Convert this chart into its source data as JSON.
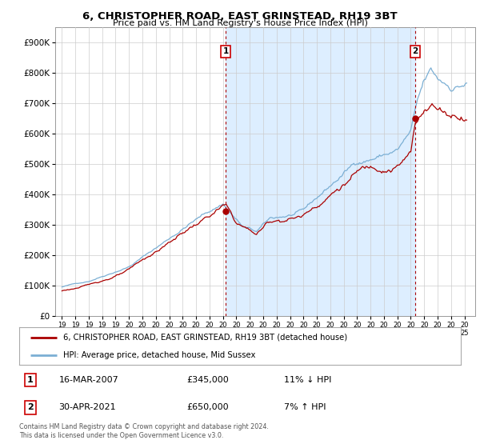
{
  "title_line1": "6, CHRISTOPHER ROAD, EAST GRINSTEAD, RH19 3BT",
  "title_line2": "Price paid vs. HM Land Registry's House Price Index (HPI)",
  "legend_label1": "6, CHRISTOPHER ROAD, EAST GRINSTEAD, RH19 3BT (detached house)",
  "legend_label2": "HPI: Average price, detached house, Mid Sussex",
  "annotation1_date": "16-MAR-2007",
  "annotation1_price": "£345,000",
  "annotation1_hpi": "11% ↓ HPI",
  "annotation1_year": 2007.21,
  "annotation1_value": 345000,
  "annotation2_date": "30-APR-2021",
  "annotation2_price": "£650,000",
  "annotation2_hpi": "7% ↑ HPI",
  "annotation2_year": 2021.33,
  "annotation2_value": 650000,
  "red_line_color": "#aa0000",
  "blue_line_color": "#7bafd4",
  "shade_color": "#ddeeff",
  "background_color": "#ffffff",
  "grid_color": "#cccccc",
  "ylim": [
    0,
    950000
  ],
  "yticks": [
    0,
    100000,
    200000,
    300000,
    400000,
    500000,
    600000,
    700000,
    800000,
    900000
  ],
  "ytick_labels": [
    "£0",
    "£100K",
    "£200K",
    "£300K",
    "£400K",
    "£500K",
    "£600K",
    "£700K",
    "£800K",
    "£900K"
  ],
  "footer_text": "Contains HM Land Registry data © Crown copyright and database right 2024.\nThis data is licensed under the Open Government Licence v3.0.",
  "xlim_left": 1994.5,
  "xlim_right": 2025.8
}
